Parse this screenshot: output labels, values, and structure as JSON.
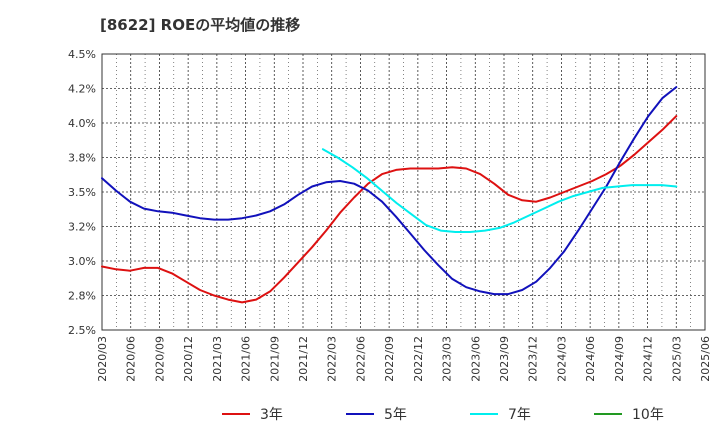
{
  "chart_data": {
    "type": "line",
    "title": "[8622]  ROEの平均値の推移",
    "xlabel": "",
    "ylabel": "",
    "ylim": [
      2.5,
      4.5
    ],
    "y_ticks": [
      "2.5%",
      "2.8%",
      "3.0%",
      "3.2%",
      "3.5%",
      "3.8%",
      "4.0%",
      "4.2%",
      "4.5%"
    ],
    "x_ticks": [
      "2020/03",
      "2020/06",
      "2020/09",
      "2020/12",
      "2021/03",
      "2021/06",
      "2021/09",
      "2021/12",
      "2022/03",
      "2022/06",
      "2022/09",
      "2022/12",
      "2023/03",
      "2023/06",
      "2023/09",
      "2023/12",
      "2024/03",
      "2024/06",
      "2024/09",
      "2024/12",
      "2025/03",
      "2025/06"
    ],
    "grid": true,
    "legend_position": "bottom",
    "series": [
      {
        "name": "3年",
        "color": "#dd1111",
        "values": [
          2.96,
          2.94,
          2.93,
          2.95,
          2.95,
          2.91,
          2.85,
          2.79,
          2.75,
          2.72,
          2.7,
          2.72,
          2.78,
          2.88,
          2.99,
          3.1,
          3.22,
          3.35,
          3.46,
          3.56,
          3.63,
          3.66,
          3.67,
          3.67,
          3.67,
          3.68,
          3.67,
          3.63,
          3.56,
          3.48,
          3.44,
          3.43,
          3.46,
          3.5,
          3.54,
          3.58,
          3.63,
          3.69,
          3.77,
          3.86,
          3.95,
          4.05
        ]
      },
      {
        "name": "5年",
        "color": "#1111bb",
        "values": [
          3.6,
          3.51,
          3.43,
          3.38,
          3.36,
          3.35,
          3.33,
          3.31,
          3.3,
          3.3,
          3.31,
          3.33,
          3.36,
          3.41,
          3.48,
          3.54,
          3.57,
          3.58,
          3.56,
          3.51,
          3.43,
          3.32,
          3.2,
          3.08,
          2.97,
          2.87,
          2.81,
          2.78,
          2.76,
          2.76,
          2.79,
          2.85,
          2.95,
          3.07,
          3.22,
          3.38,
          3.54,
          3.72,
          3.89,
          4.05,
          4.18,
          4.26
        ]
      },
      {
        "name": "7年",
        "color": "#00eeee",
        "values": [
          null,
          null,
          null,
          null,
          null,
          null,
          null,
          null,
          null,
          null,
          null,
          null,
          null,
          null,
          null,
          3.81,
          3.75,
          3.68,
          3.6,
          3.51,
          3.42,
          3.34,
          3.26,
          3.22,
          3.21,
          3.21,
          3.22,
          3.24,
          3.28,
          3.33,
          3.38,
          3.43,
          3.47,
          3.5,
          3.53,
          3.54,
          3.55,
          3.55,
          3.55,
          3.54
        ]
      },
      {
        "name": "10年",
        "color": "#229922",
        "values": []
      }
    ]
  }
}
